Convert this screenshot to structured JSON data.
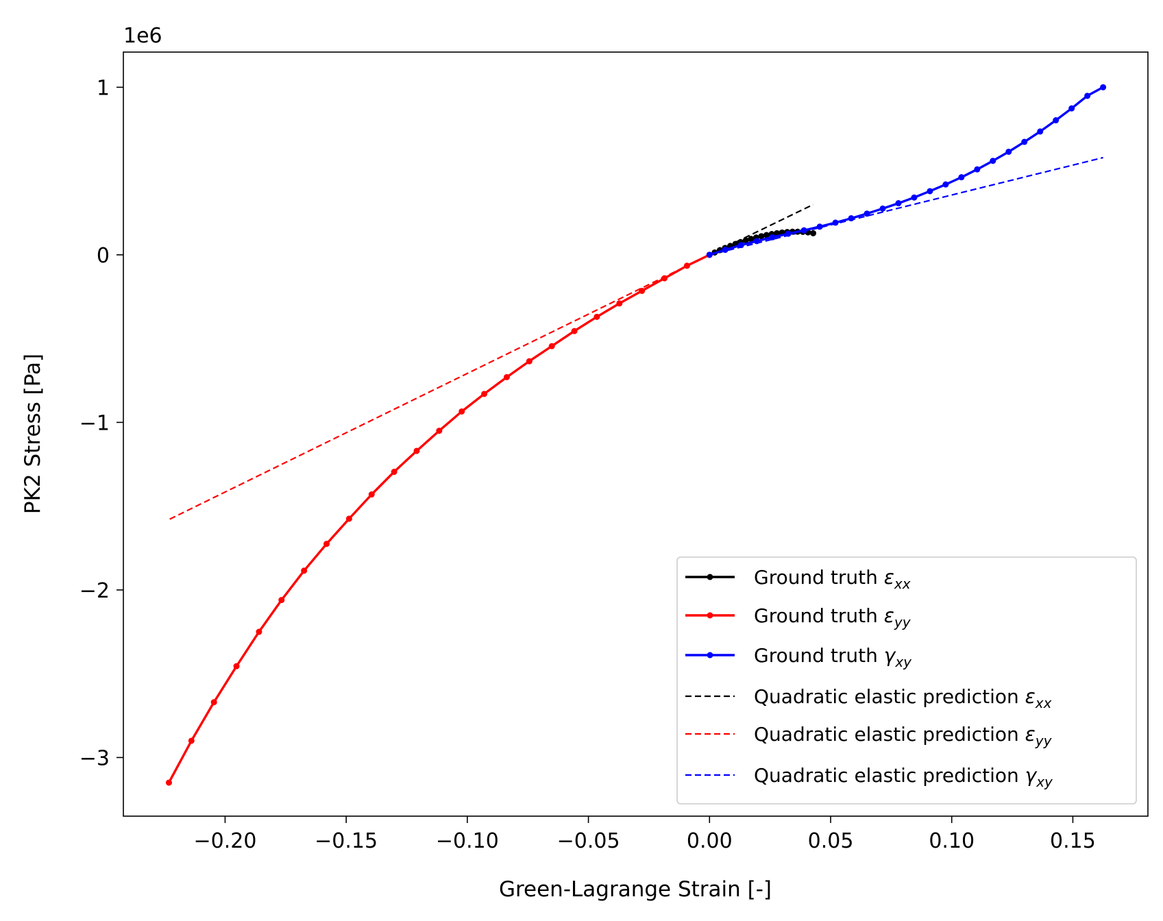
{
  "chart_data": {
    "type": "line",
    "title": "",
    "xlabel": "Green-Lagrange Strain [-]",
    "ylabel": "PK2 Stress [Pa]",
    "y_offset_label": "1e6",
    "y_scale_factor": 1000000,
    "xlim": [
      -0.242,
      0.181
    ],
    "ylim": [
      -3.35,
      1.21
    ],
    "xticks": [
      -0.2,
      -0.15,
      -0.1,
      -0.05,
      0.0,
      0.05,
      0.1,
      0.15
    ],
    "xtick_labels": [
      "−0.20",
      "−0.15",
      "−0.10",
      "−0.05",
      "0.00",
      "0.05",
      "0.10",
      "0.15"
    ],
    "yticks": [
      1,
      0,
      -1,
      -2,
      -3
    ],
    "ytick_labels": [
      "1",
      "0",
      "−1",
      "−2",
      "−3"
    ],
    "grid": false,
    "legend_position": "lower-right",
    "series": [
      {
        "name": "Ground truth",
        "symbol": "ε",
        "subscript": "xx",
        "color": "#000000",
        "style": "solid-marker",
        "x": [
          0.0,
          0.00214,
          0.00428,
          0.00642,
          0.00856,
          0.0107,
          0.01284,
          0.01498,
          0.01712,
          0.01926,
          0.0214,
          0.02354,
          0.02568,
          0.02782,
          0.02996,
          0.0321,
          0.03424,
          0.03638,
          0.03852,
          0.04066,
          0.0428
        ],
        "y": [
          0.0,
          0.014,
          0.028,
          0.041,
          0.053,
          0.065,
          0.076,
          0.086,
          0.095,
          0.103,
          0.111,
          0.118,
          0.124,
          0.129,
          0.133,
          0.136,
          0.138,
          0.138,
          0.137,
          0.134,
          0.129
        ]
      },
      {
        "name": "Ground truth",
        "symbol": "ε",
        "subscript": "yy",
        "color": "#ff0000",
        "style": "solid-marker",
        "x": [
          0.0,
          -0.0093,
          -0.0186,
          -0.0279,
          -0.0372,
          -0.0465,
          -0.0558,
          -0.0651,
          -0.0744,
          -0.0837,
          -0.093,
          -0.1023,
          -0.1116,
          -0.1209,
          -0.1302,
          -0.1395,
          -0.1488,
          -0.1581,
          -0.1674,
          -0.1767,
          -0.186,
          -0.1953,
          -0.2046,
          -0.2139,
          -0.2232
        ],
        "y": [
          0.0,
          -0.065,
          -0.14,
          -0.215,
          -0.29,
          -0.37,
          -0.455,
          -0.545,
          -0.635,
          -0.73,
          -0.83,
          -0.935,
          -1.05,
          -1.17,
          -1.295,
          -1.43,
          -1.575,
          -1.725,
          -1.885,
          -2.06,
          -2.25,
          -2.455,
          -2.67,
          -2.9,
          -3.15
        ]
      },
      {
        "name": "Ground truth",
        "symbol": "γ",
        "subscript": "xy",
        "color": "#0000ff",
        "style": "solid-marker",
        "x": [
          0.0,
          0.0065,
          0.013,
          0.0195,
          0.026,
          0.0325,
          0.039,
          0.0455,
          0.052,
          0.0585,
          0.065,
          0.0715,
          0.078,
          0.0845,
          0.091,
          0.0975,
          0.104,
          0.1105,
          0.117,
          0.1235,
          0.13,
          0.1365,
          0.143,
          0.1495,
          0.156,
          0.1625
        ],
        "y": [
          0.0,
          0.03,
          0.058,
          0.082,
          0.105,
          0.126,
          0.146,
          0.168,
          0.192,
          0.218,
          0.246,
          0.276,
          0.308,
          0.342,
          0.38,
          0.42,
          0.463,
          0.51,
          0.561,
          0.615,
          0.674,
          0.736,
          0.803,
          0.874,
          0.949,
          1.0
        ]
      },
      {
        "name": "Quadratic elastic prediction",
        "symbol": "ε",
        "subscript": "xx",
        "color": "#000000",
        "style": "dashed",
        "x": [
          0.0,
          0.0428
        ],
        "y": [
          0.0,
          0.3
        ]
      },
      {
        "name": "Quadratic elastic prediction",
        "symbol": "ε",
        "subscript": "yy",
        "color": "#ff0000",
        "style": "dashed",
        "x": [
          0.0,
          -0.2232
        ],
        "y": [
          0.0,
          -1.58
        ]
      },
      {
        "name": "Quadratic elastic prediction",
        "symbol": "γ",
        "subscript": "xy",
        "color": "#0000ff",
        "style": "dashed",
        "x": [
          0.0,
          0.1625
        ],
        "y": [
          0.0,
          0.58
        ]
      }
    ]
  }
}
